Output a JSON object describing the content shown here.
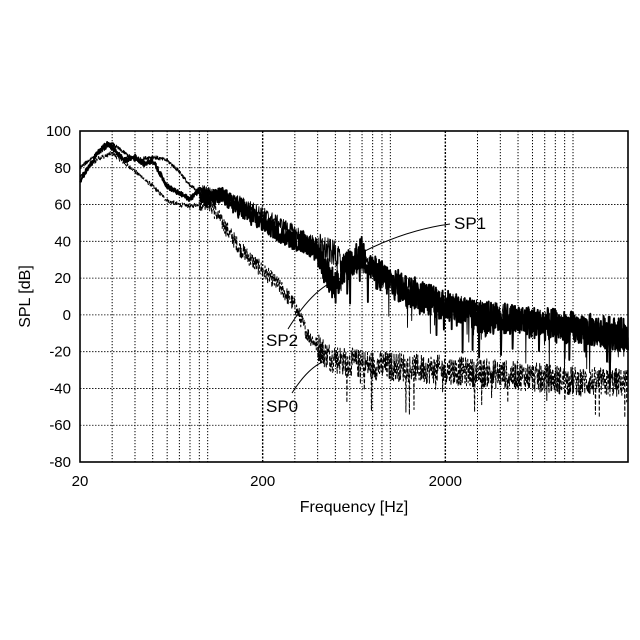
{
  "chart_data": {
    "type": "line",
    "title": "",
    "xlabel": "Frequency [Hz]",
    "ylabel": "SPL [dB]",
    "xscale": "log",
    "xlim": [
      20,
      20000
    ],
    "ylim": [
      -80,
      100
    ],
    "xticks": [
      20,
      200,
      2000
    ],
    "xtick_labels": [
      "20",
      "200",
      "2000"
    ],
    "yticks": [
      100,
      80,
      60,
      40,
      20,
      0,
      -20,
      -40,
      -60,
      -80
    ],
    "ytick_labels": [
      "100",
      "80",
      "60",
      "40",
      "20",
      "0",
      "-20",
      "-40",
      "-60",
      "-80"
    ],
    "grid": "on",
    "legend": "none",
    "annotations": [
      {
        "text": "SP1",
        "series": "SP1",
        "target": [
          700,
          34
        ]
      },
      {
        "text": "SP2",
        "series": "SP2",
        "target": [
          550,
          20
        ]
      },
      {
        "text": "SP0",
        "series": "SP0",
        "target": [
          440,
          -25
        ]
      }
    ],
    "series": [
      {
        "name": "SP1",
        "style": "thick-solid",
        "noise": 9,
        "x": [
          20,
          25,
          28,
          30,
          35,
          40,
          45,
          50,
          60,
          70,
          80,
          90,
          100,
          120,
          150,
          200,
          250,
          300,
          350,
          400,
          500,
          550,
          600,
          700,
          800,
          1000,
          1200,
          1500,
          2000,
          3000,
          5000,
          10000,
          20000
        ],
        "y": [
          73,
          88,
          93,
          91,
          84,
          86,
          82,
          84,
          70,
          66,
          63,
          68,
          62,
          65,
          57,
          50,
          44,
          40,
          38,
          33,
          15,
          24,
          28,
          34,
          24,
          18,
          14,
          10,
          5,
          -1,
          -3,
          -7,
          -11
        ]
      },
      {
        "name": "SP2",
        "style": "thin-solid",
        "noise": 7,
        "x": [
          20,
          25,
          30,
          40,
          50,
          60,
          70,
          80,
          100,
          150,
          200,
          300,
          400,
          500,
          550,
          700,
          1000,
          2000,
          5000,
          10000,
          20000
        ],
        "y": [
          80,
          88,
          93,
          84,
          86,
          84,
          78,
          70,
          66,
          61,
          55,
          45,
          38,
          33,
          26,
          30,
          18,
          5,
          -2,
          -8,
          -12
        ]
      },
      {
        "name": "SP0",
        "style": "dashed",
        "noise": 8,
        "x": [
          20,
          25,
          30,
          40,
          50,
          60,
          70,
          80,
          100,
          150,
          200,
          250,
          300,
          350,
          400,
          450,
          500,
          700,
          1000,
          2000,
          5000,
          10000,
          20000
        ],
        "y": [
          75,
          85,
          88,
          78,
          70,
          62,
          60,
          59,
          62,
          36,
          24,
          15,
          5,
          -10,
          -17,
          -22,
          -24,
          -27,
          -28,
          -30,
          -33,
          -36,
          -37
        ]
      }
    ]
  }
}
